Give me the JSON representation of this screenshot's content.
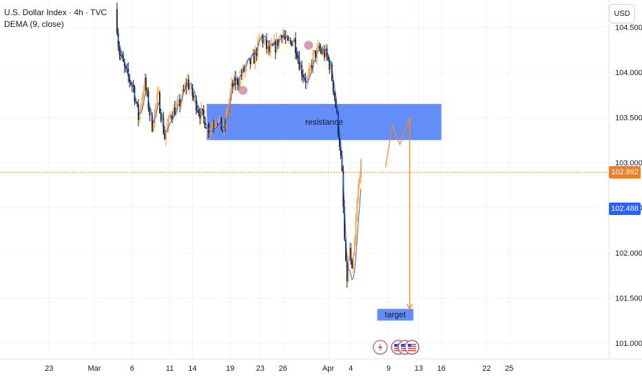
{
  "legend": {
    "symbol": "U.S. Dollar Index · 4h · TVC",
    "indicator": "DEMA (9, close)"
  },
  "currency": "USD",
  "colors": {
    "candle_up": "#f59c3e",
    "candle_down": "#131722",
    "dema": "#2962ff",
    "zone": "#5b87f7",
    "projection": "#f28a35",
    "last_price": "#f57c1f",
    "dema_tag": "#2962ff",
    "marker": "#c77d9b",
    "grid": "#f0f3fa",
    "axis_text": "#131722"
  },
  "last_price": {
    "value": 102.892,
    "label": "102.892"
  },
  "dema_value": {
    "value": 102.488,
    "label": "102.488"
  },
  "annotations": {
    "resistance": {
      "label": "resistance",
      "y_low": 103.25,
      "y_high": 103.65,
      "from_day": 15.9,
      "to_day": 47
    },
    "target": {
      "label": "target",
      "y_low": 101.25,
      "y_high": 101.38,
      "from_day": 38.5,
      "to_day": 43.3
    },
    "projection": [
      [
        39.6,
        102.95
      ],
      [
        40.5,
        103.42
      ],
      [
        41.5,
        103.2
      ],
      [
        42.8,
        103.5
      ],
      [
        42.8,
        101.38
      ]
    ]
  },
  "events": {
    "lightning_day": 38.9,
    "flags_days": [
      41.3,
      42.2,
      43.1
    ]
  },
  "chart_data": {
    "type": "candlestick",
    "title": "U.S. Dollar Index · 4h · TVC",
    "indicator": "DEMA (9, close)",
    "ylim": [
      100.9,
      104.6
    ],
    "y_ticks": [
      "101.000",
      "101.500",
      "102.000",
      "102.500",
      "103.000",
      "103.500",
      "104.000",
      "104.500"
    ],
    "x_ticks": [
      {
        "label": "23",
        "day": -5
      },
      {
        "label": "Mar",
        "day": 1
      },
      {
        "label": "6",
        "day": 6
      },
      {
        "label": "11",
        "day": 11
      },
      {
        "label": "14",
        "day": 14
      },
      {
        "label": "19",
        "day": 19
      },
      {
        "label": "23",
        "day": 23
      },
      {
        "label": "26",
        "day": 26
      },
      {
        "label": "Apr",
        "day": 32
      },
      {
        "label": "4",
        "day": 35
      },
      {
        "label": "9",
        "day": 40
      },
      {
        "label": "13",
        "day": 44
      },
      {
        "label": "16",
        "day": 47
      },
      {
        "label": "22",
        "day": 53
      },
      {
        "label": "25",
        "day": 56
      }
    ],
    "anchors": [
      [
        4.0,
        104.7
      ],
      [
        4.4,
        104.25
      ],
      [
        5.3,
        104.0
      ],
      [
        6.3,
        103.85
      ],
      [
        7.0,
        103.5
      ],
      [
        7.8,
        103.9
      ],
      [
        8.8,
        103.4
      ],
      [
        9.6,
        103.75
      ],
      [
        10.5,
        103.28
      ],
      [
        11.3,
        103.55
      ],
      [
        12.3,
        103.62
      ],
      [
        13.5,
        103.9
      ],
      [
        14.3,
        103.72
      ],
      [
        15.2,
        103.55
      ],
      [
        16.4,
        103.38
      ],
      [
        17.4,
        103.5
      ],
      [
        18.3,
        103.34
      ],
      [
        19.4,
        103.85
      ],
      [
        20.3,
        103.92
      ],
      [
        21.2,
        104.05
      ],
      [
        22.3,
        104.15
      ],
      [
        23.3,
        104.4
      ],
      [
        24.3,
        104.22
      ],
      [
        25.3,
        104.3
      ],
      [
        26.0,
        104.45
      ],
      [
        26.8,
        104.3
      ],
      [
        27.6,
        104.38
      ],
      [
        28.5,
        104.05
      ],
      [
        29.4,
        103.88
      ],
      [
        30.2,
        104.18
      ],
      [
        31.0,
        104.25
      ],
      [
        31.8,
        104.2
      ],
      [
        32.4,
        104.08
      ],
      [
        33.0,
        103.75
      ],
      [
        33.6,
        103.3
      ],
      [
        34.0,
        102.85
      ],
      [
        34.3,
        102.2
      ],
      [
        34.6,
        101.65
      ],
      [
        35.0,
        102.05
      ],
      [
        35.3,
        101.72
      ],
      [
        35.7,
        102.15
      ],
      [
        36.0,
        102.55
      ],
      [
        36.3,
        102.9
      ],
      [
        36.45,
        102.95
      ]
    ]
  }
}
